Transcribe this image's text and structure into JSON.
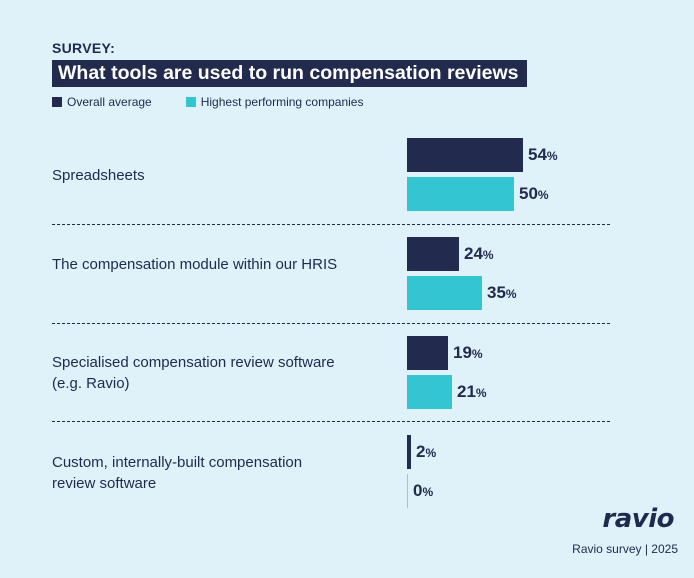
{
  "header": {
    "eyebrow": "SURVEY:",
    "title": "What tools are used to run compensation reviews"
  },
  "colors": {
    "overall": "#222a4e",
    "highest": "#33c6d2",
    "background": "#dff1f9"
  },
  "brand": {
    "logo": "ravio",
    "footer": "Ravio survey | 2025"
  },
  "chart_data": {
    "type": "bar",
    "orientation": "horizontal",
    "categories": [
      "Spreadsheets",
      "The compensation module within our HRIS",
      "Specialised compensation review software (e.g. Ravio)",
      "Custom, internally-built compensation review software"
    ],
    "series": [
      {
        "name": "Overall average",
        "values": [
          54,
          24,
          19,
          2
        ]
      },
      {
        "name": "Highest performing companies",
        "values": [
          50,
          35,
          21,
          0
        ]
      }
    ],
    "value_suffix": "%",
    "title": "What tools are used to run compensation reviews",
    "xlabel": "",
    "ylabel": "",
    "xlim": [
      0,
      54
    ],
    "legend": "top-left",
    "grid": false
  }
}
